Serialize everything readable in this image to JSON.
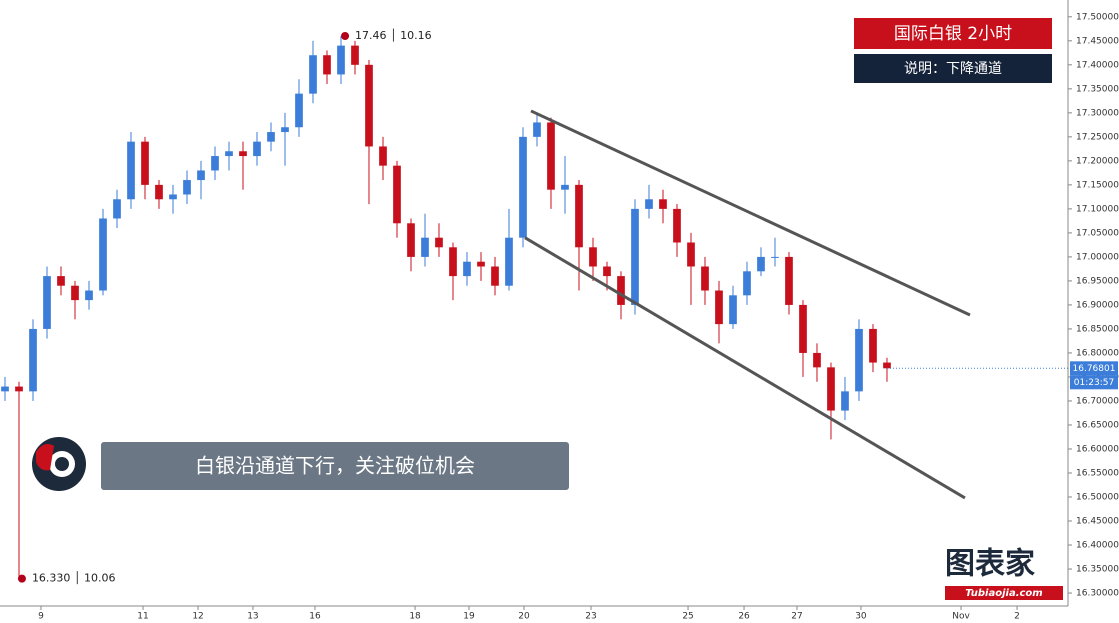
{
  "chart_data": {
    "type": "candlestick",
    "title": "国际白银 2小时",
    "subtitle": "说明：下降通道",
    "annotation_banner": "白银沿通道下行，关注破位机会",
    "logo": {
      "text": "图表家",
      "subtext": "Tubiaojia.com"
    },
    "up_color": "#3b7dd8",
    "down_color": "#c8101c",
    "x": [
      0,
      1,
      2,
      3,
      4,
      5,
      6,
      7,
      8,
      9,
      10,
      11,
      12,
      13,
      14,
      15,
      16,
      17,
      18,
      19,
      20,
      21,
      22,
      23,
      24,
      25,
      26,
      27,
      28,
      29,
      30,
      31,
      32,
      33,
      34,
      35,
      36,
      37,
      38,
      39,
      40,
      41,
      42,
      43,
      44,
      45,
      46,
      47,
      48,
      49,
      50,
      51,
      52,
      53,
      54,
      55,
      56,
      57,
      58,
      59,
      60,
      61,
      62,
      63
    ],
    "open": [
      16.72,
      16.73,
      16.72,
      16.85,
      16.96,
      16.94,
      16.91,
      16.93,
      17.08,
      17.12,
      17.24,
      17.15,
      17.12,
      17.13,
      17.16,
      17.18,
      17.21,
      17.22,
      17.21,
      17.24,
      17.26,
      17.27,
      17.34,
      17.42,
      17.38,
      17.44,
      17.4,
      17.23,
      17.19,
      17.07,
      17.0,
      17.04,
      17.02,
      16.96,
      16.99,
      16.98,
      16.94,
      17.04,
      17.25,
      17.28,
      17.14,
      17.15,
      17.02,
      16.98,
      16.96,
      16.9,
      17.1,
      17.12,
      17.1,
      17.03,
      16.98,
      16.93,
      16.86,
      16.92,
      16.97,
      17.0,
      17.0,
      16.9,
      16.8,
      16.77,
      16.68,
      16.72,
      16.85,
      16.78
    ],
    "high": [
      16.75,
      16.74,
      16.87,
      16.98,
      16.98,
      16.95,
      16.95,
      17.1,
      17.14,
      17.26,
      17.25,
      17.16,
      17.15,
      17.18,
      17.2,
      17.23,
      17.24,
      17.24,
      17.26,
      17.28,
      17.3,
      17.37,
      17.45,
      17.43,
      17.46,
      17.45,
      17.41,
      17.25,
      17.2,
      17.08,
      17.09,
      17.07,
      17.03,
      17.01,
      17.01,
      17.0,
      17.1,
      17.27,
      17.3,
      17.29,
      17.21,
      17.16,
      17.04,
      16.99,
      16.97,
      17.12,
      17.15,
      17.14,
      17.11,
      17.05,
      17.0,
      16.95,
      16.94,
      16.99,
      17.02,
      17.04,
      17.01,
      16.91,
      16.82,
      16.78,
      16.75,
      16.87,
      16.86,
      16.79
    ],
    "low": [
      16.7,
      16.33,
      16.7,
      16.83,
      16.92,
      16.87,
      16.89,
      16.92,
      17.06,
      17.1,
      17.12,
      17.1,
      17.09,
      17.11,
      17.12,
      17.16,
      17.18,
      17.14,
      17.19,
      17.22,
      17.19,
      17.25,
      17.32,
      17.36,
      17.36,
      17.38,
      17.11,
      17.16,
      17.04,
      16.97,
      16.98,
      17.0,
      16.91,
      16.94,
      16.95,
      16.92,
      16.93,
      17.02,
      17.23,
      17.1,
      17.09,
      16.93,
      16.95,
      16.93,
      16.87,
      16.88,
      17.08,
      17.07,
      17.0,
      16.9,
      16.9,
      16.82,
      16.85,
      16.9,
      16.96,
      16.98,
      16.88,
      16.75,
      16.74,
      16.62,
      16.66,
      16.7,
      16.76,
      16.74
    ],
    "close": [
      16.73,
      16.72,
      16.85,
      16.96,
      16.94,
      16.91,
      16.93,
      17.08,
      17.12,
      17.24,
      17.15,
      17.12,
      17.13,
      17.16,
      17.18,
      17.21,
      17.22,
      17.21,
      17.24,
      17.26,
      17.27,
      17.34,
      17.42,
      17.38,
      17.44,
      17.4,
      17.23,
      17.19,
      17.07,
      17.0,
      17.04,
      17.02,
      16.96,
      16.99,
      16.98,
      16.94,
      17.04,
      17.25,
      17.28,
      17.14,
      17.15,
      17.02,
      16.98,
      16.96,
      16.9,
      17.1,
      17.12,
      17.1,
      17.03,
      16.98,
      16.93,
      16.86,
      16.92,
      16.97,
      17.0,
      17.0,
      16.9,
      16.8,
      16.77,
      16.68,
      16.72,
      16.85,
      16.78,
      16.768
    ],
    "xlim": [
      -0.357,
      75.93
    ],
    "ylim": [
      16.273,
      17.535
    ],
    "xticks": [
      {
        "value": 2.57,
        "label": "9"
      },
      {
        "value": 9.86,
        "label": "11"
      },
      {
        "value": 13.79,
        "label": "12"
      },
      {
        "value": 17.71,
        "label": "13"
      },
      {
        "value": 22.14,
        "label": "16"
      },
      {
        "value": 29.29,
        "label": "18"
      },
      {
        "value": 33.14,
        "label": "19"
      },
      {
        "value": 37.07,
        "label": "20"
      },
      {
        "value": 41.86,
        "label": "23"
      },
      {
        "value": 48.79,
        "label": "25"
      },
      {
        "value": 52.79,
        "label": "26"
      },
      {
        "value": 56.57,
        "label": "27"
      },
      {
        "value": 61.14,
        "label": "30"
      },
      {
        "value": 68.29,
        "label": "Nov"
      },
      {
        "value": 72.29,
        "label": "2"
      }
    ],
    "yticks": [
      {
        "value": 16.3,
        "label": "16.30000"
      },
      {
        "value": 16.35,
        "label": "16.35000"
      },
      {
        "value": 16.4,
        "label": "16.40000"
      },
      {
        "value": 16.45,
        "label": "16.45000"
      },
      {
        "value": 16.5,
        "label": "16.50000"
      },
      {
        "value": 16.55,
        "label": "16.55000"
      },
      {
        "value": 16.6,
        "label": "16.60000"
      },
      {
        "value": 16.65,
        "label": "16.65000"
      },
      {
        "value": 16.7,
        "label": "16.70000"
      },
      {
        "value": 16.75,
        "label": "16.75000"
      },
      {
        "value": 16.8,
        "label": "16.80000"
      },
      {
        "value": 16.85,
        "label": "16.85000"
      },
      {
        "value": 16.9,
        "label": "16.90000"
      },
      {
        "value": 16.95,
        "label": "16.95000"
      },
      {
        "value": 17.0,
        "label": "17.00000"
      },
      {
        "value": 17.05,
        "label": "17.05000"
      },
      {
        "value": 17.1,
        "label": "17.10000"
      },
      {
        "value": 17.15,
        "label": "17.15000"
      },
      {
        "value": 17.2,
        "label": "17.20000"
      },
      {
        "value": 17.25,
        "label": "17.25000"
      },
      {
        "value": 17.3,
        "label": "17.30000"
      },
      {
        "value": 17.35,
        "label": "17.35000"
      },
      {
        "value": 17.4,
        "label": "17.40000"
      },
      {
        "value": 17.45,
        "label": "17.45000"
      },
      {
        "value": 17.5,
        "label": "17.50000"
      }
    ],
    "grid": false,
    "last_price": 16.76801,
    "countdown": "01:23:57",
    "trendlines": [
      {
        "color": "#555555",
        "x": [
          37.57,
          68.93
        ],
        "y": [
          17.304,
          16.879
        ]
      },
      {
        "color": "#555555",
        "x": [
          37.14,
          68.57
        ],
        "y": [
          17.04,
          16.498
        ]
      }
    ],
    "annotations": [
      {
        "text": "17.46 │ 10.16",
        "x": 24.29,
        "y": 17.46,
        "color": "#b3001b"
      },
      {
        "text": "16.330 │ 10.06",
        "x": 1.21,
        "y": 16.33,
        "color": "#b3001b"
      }
    ]
  }
}
